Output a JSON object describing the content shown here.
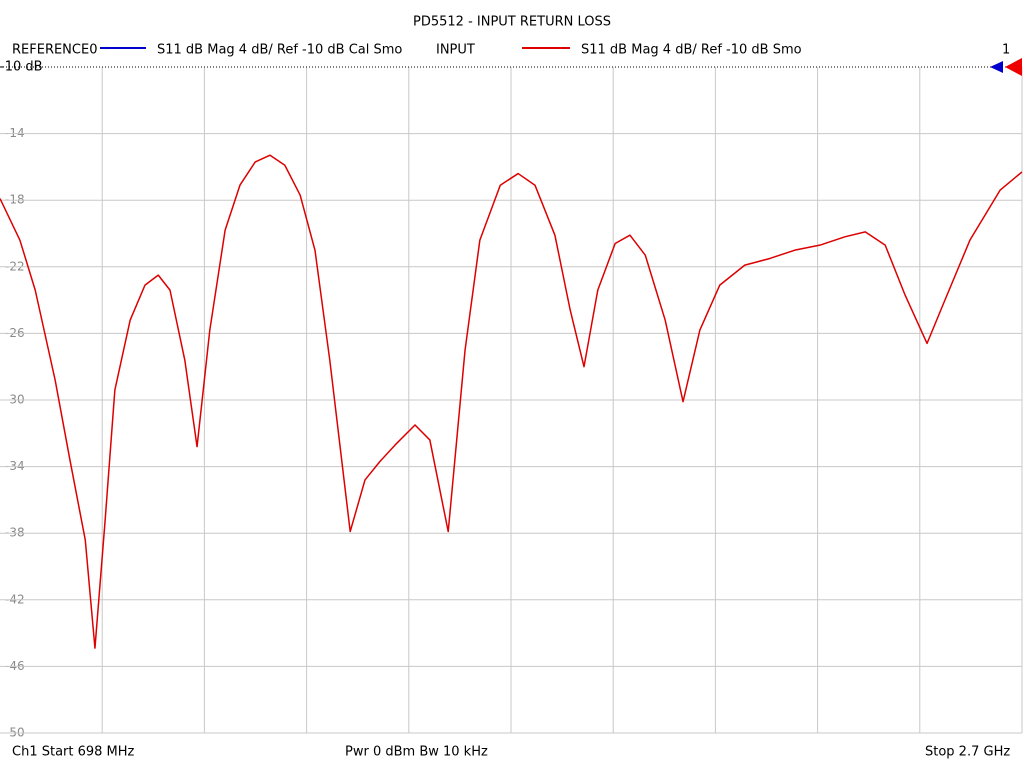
{
  "chart_data": {
    "type": "line",
    "title": "PD5512 - INPUT RETURN LOSS",
    "reference_trace": {
      "name": "REFERENCE0",
      "description": "S11  dB Mag  4 dB/ Ref -10 dB  Cal Smo",
      "color": "#0000cc"
    },
    "ref_label": "-10 dB",
    "marker_label": "1",
    "footer": {
      "start": "Ch1  Start  698 MHz",
      "power": "Pwr  0 dBm  Bw  10 kHz",
      "stop": "Stop  2.7 GHz"
    },
    "x": [
      698,
      737,
      767,
      806,
      835,
      865,
      884,
      904,
      923,
      953,
      982,
      1008,
      1031,
      1060,
      1084,
      1109,
      1139,
      1168,
      1198,
      1227,
      1256,
      1286,
      1315,
      1344,
      1384,
      1413,
      1442,
      1472,
      1511,
      1540,
      1576,
      1609,
      1638,
      1678,
      1713,
      1746,
      1785,
      1815,
      1842,
      1869,
      1903,
      1932,
      1962,
      2001,
      2036,
      2069,
      2108,
      2157,
      2206,
      2255,
      2304,
      2353,
      2393,
      2432,
      2471,
      2514,
      2549,
      2598,
      2657,
      2700
    ],
    "series": [
      {
        "name": "INPUT",
        "description": "S11  dB Mag  4 dB/ Ref -10 dB  Smo",
        "color": "#dd0000",
        "values": [
          -17.9,
          -20.4,
          -23.4,
          -28.8,
          -33.6,
          -38.4,
          -44.9,
          -37.2,
          -29.4,
          -25.2,
          -23.1,
          -22.5,
          -23.4,
          -27.6,
          -32.8,
          -25.8,
          -19.8,
          -17.1,
          -15.7,
          -15.3,
          -15.9,
          -17.7,
          -21.0,
          -27.6,
          -37.9,
          -34.8,
          -33.7,
          -32.7,
          -31.5,
          -32.4,
          -37.9,
          -27.0,
          -20.4,
          -17.1,
          -16.4,
          -17.1,
          -20.1,
          -24.6,
          -28.0,
          -23.4,
          -20.6,
          -20.1,
          -21.3,
          -25.2,
          -30.1,
          -25.8,
          -23.1,
          -21.9,
          -21.5,
          -21.0,
          -20.7,
          -20.2,
          -19.9,
          -20.7,
          -23.7,
          -26.6,
          -24.0,
          -20.4,
          -17.4,
          -16.3
        ]
      }
    ],
    "xlim": [
      698,
      2700
    ],
    "ylim": [
      -50,
      -10
    ],
    "yticks": [
      -14,
      -18,
      -22,
      -26,
      -30,
      -34,
      -38,
      -42,
      -46,
      -50
    ],
    "grid": true
  }
}
